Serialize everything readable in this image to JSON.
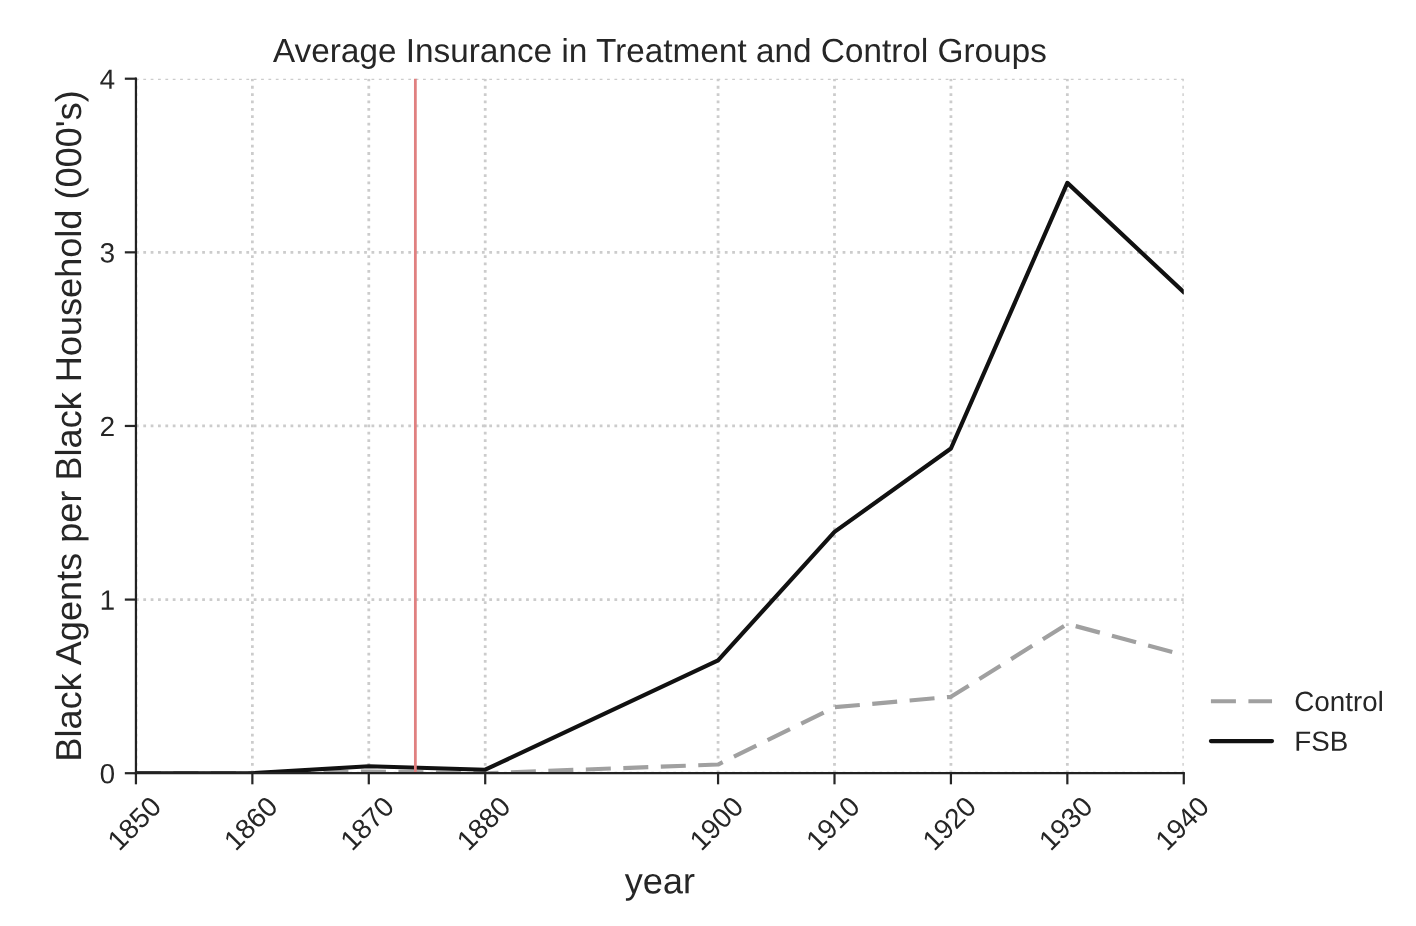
{
  "chart_data": {
    "type": "line",
    "title": "Average Insurance in Treatment and Control Groups",
    "xlabel": "year",
    "ylabel": "Black Agents per Black Household (000's)",
    "x": [
      1850,
      1860,
      1870,
      1880,
      1900,
      1910,
      1920,
      1930,
      1940
    ],
    "series": [
      {
        "name": "Control",
        "color": "#a0a0a0",
        "line_style": "dashed",
        "values": [
          0,
          0,
          0.01,
          0,
          0.05,
          0.38,
          0.44,
          0.86,
          0.68
        ]
      },
      {
        "name": "FSB",
        "color": "#111111",
        "line_style": "solid",
        "values": [
          0,
          0,
          0.04,
          0.02,
          0.65,
          1.39,
          1.87,
          3.4,
          2.77
        ]
      }
    ],
    "xlim": [
      1850,
      1940
    ],
    "xticks": [
      1850,
      1860,
      1870,
      1880,
      1900,
      1910,
      1920,
      1930,
      1940
    ],
    "ylim": [
      0,
      4
    ],
    "yticks": [
      0,
      1,
      2,
      3,
      4
    ],
    "ref_lines": [
      {
        "axis": "x",
        "value": 1874,
        "color": "#e08080"
      }
    ],
    "grid": true,
    "legend": "bottom right"
  }
}
